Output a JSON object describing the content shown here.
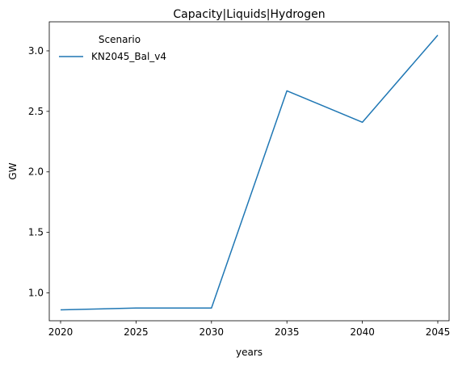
{
  "chart_data": {
    "type": "line",
    "title": "Capacity|Liquids|Hydrogen",
    "xlabel": "years",
    "ylabel": "GW",
    "x": [
      2020,
      2025,
      2030,
      2035,
      2040,
      2045
    ],
    "xticks": [
      "2020",
      "2025",
      "2030",
      "2035",
      "2040",
      "2045"
    ],
    "yticks": [
      "1.0",
      "1.5",
      "2.0",
      "2.5",
      "3.0"
    ],
    "xlim": [
      2019.25,
      2045.75
    ],
    "ylim": [
      0.77,
      3.24
    ],
    "grid": false,
    "legend": {
      "title": "Scenario",
      "placement": "top-left"
    },
    "series": [
      {
        "name": "KN2045_Bal_v4",
        "color": "#1f77b4",
        "values": [
          0.86,
          0.875,
          0.875,
          2.67,
          2.41,
          3.13
        ]
      }
    ]
  }
}
